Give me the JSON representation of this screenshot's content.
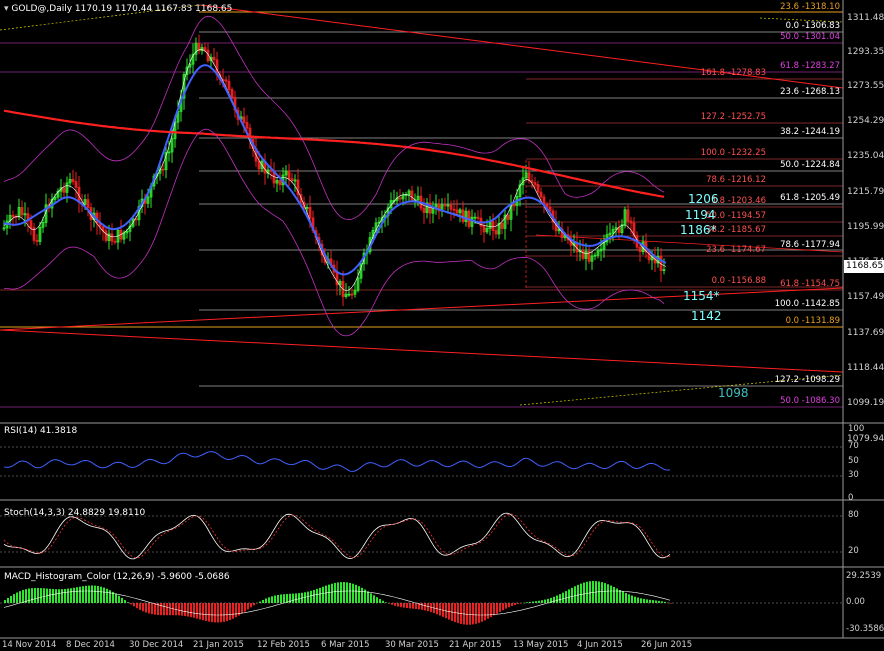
{
  "main": {
    "title": "GOLD@,Daily  1170.19 1170.44 1167.83 1168.65",
    "current_price": "1168.65",
    "y_axis_ticks": [
      "1311.48",
      "1293.35",
      "1273.55",
      "1254.29",
      "1235.04",
      "1215.79",
      "1195.99",
      "1176.74",
      "1157.49",
      "1137.69",
      "1118.44",
      "1099.19",
      "1079.94"
    ],
    "fib_labels": [
      {
        "text": "23.6 -1318.10",
        "color": "#e8a020"
      },
      {
        "text": "0.0 -1306.83",
        "color": "#ffffff"
      },
      {
        "text": "50.0 -1301.04",
        "color": "#e040e0"
      },
      {
        "text": "61.8 -1283.27",
        "color": "#e040e0"
      },
      {
        "text": "161.8 -1278.83",
        "color": "#ff5050"
      },
      {
        "text": "23.6 -1268.13",
        "color": "#ffffff"
      },
      {
        "text": "127.2 -1252.75",
        "color": "#ff5050"
      },
      {
        "text": "38.2 -1244.19",
        "color": "#ffffff"
      },
      {
        "text": "100.0 -1232.25",
        "color": "#ff5050"
      },
      {
        "text": "50.0 -1224.84",
        "color": "#ffffff"
      },
      {
        "text": "78.6 -1216.12",
        "color": "#ff5050"
      },
      {
        "text": "61.8 -1205.49",
        "color": "#ffffff"
      },
      {
        "text": "1.8 -1203.46",
        "color": "#ff5050"
      },
      {
        "text": "50.0 -1194.57",
        "color": "#ff5050"
      },
      {
        "text": "38.2 -1185.67",
        "color": "#ff5050"
      },
      {
        "text": "78.6 -1177.94",
        "color": "#ffffff"
      },
      {
        "text": "23.6 -1174.67",
        "color": "#ff5050"
      },
      {
        "text": "0.0 -1156.88",
        "color": "#ff5050"
      },
      {
        "text": "61.8 -1154.75",
        "color": "#ff5050"
      },
      {
        "text": "100.0 -1142.85",
        "color": "#ffffff"
      },
      {
        "text": "0.0 -1131.89",
        "color": "#e8a020"
      },
      {
        "text": "127.2 -1098.29",
        "color": "#ffffff"
      },
      {
        "text": "50.0 -1086.30",
        "color": "#e040e0"
      }
    ],
    "levels": [
      {
        "text": "1206",
        "color": "#80ffff"
      },
      {
        "text": "1194",
        "color": "#80ffff"
      },
      {
        "text": "1186*",
        "color": "#80ffff"
      },
      {
        "text": "1154*",
        "color": "#80ffff"
      },
      {
        "text": "1142",
        "color": "#80ffff"
      },
      {
        "text": "1098",
        "color": "#40c0c0"
      }
    ]
  },
  "rsi": {
    "title": "RSI(14) 41.3818",
    "ticks": [
      "100",
      "70",
      "50",
      "30",
      "0"
    ]
  },
  "stoch": {
    "title": "Stoch(14,3,3) 24.8829 19.8110",
    "ticks": [
      "80",
      "20"
    ]
  },
  "macd": {
    "title": "MACD_Histogram_Color (12,26,9) -5.9600 -5.0686",
    "ticks": [
      "29.2539",
      "0.00",
      "-30.3586"
    ]
  },
  "x_axis_labels": [
    "14 Nov 2014",
    "8 Dec 2014",
    "30 Dec 2014",
    "21 Jan 2015",
    "12 Feb 2015",
    "6 Mar 2015",
    "30 Mar 2015",
    "21 Apr 2015",
    "13 May 2015",
    "4 Jun 2015",
    "26 Jun 2015"
  ],
  "colors": {
    "bull": "#2ee82e",
    "bear": "#e82020",
    "ma_blue": "#4060ff",
    "ma_red": "#ff2020",
    "bands": "#c030c0",
    "rsi": "#4060ff",
    "signal": "#ff3030"
  }
}
